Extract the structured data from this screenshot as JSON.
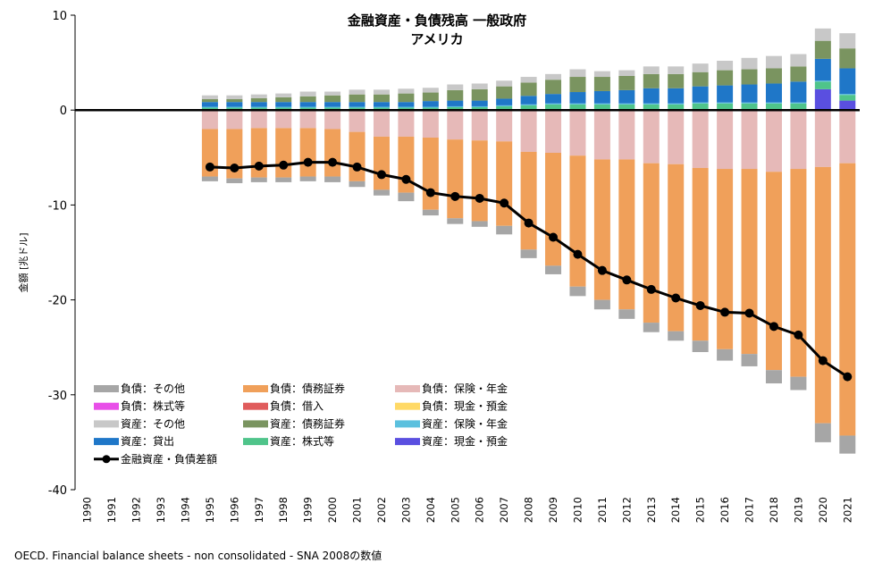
{
  "chart_data": {
    "type": "bar",
    "title": "金融資産・負債残高 一般政府",
    "subtitle": "アメリカ",
    "ylabel": "金額 [兆ドル]",
    "ylim": [
      -40,
      10
    ],
    "yticks": [
      10,
      0,
      -10,
      -20,
      -30,
      -40
    ],
    "source": "OECD. Financial balance sheets - non consolidated - SNA 2008の数値",
    "categories": [
      "1990",
      "1991",
      "1992",
      "1993",
      "1994",
      "1995",
      "1996",
      "1997",
      "1998",
      "1999",
      "2000",
      "2001",
      "2002",
      "2003",
      "2004",
      "2005",
      "2006",
      "2007",
      "2008",
      "2009",
      "2010",
      "2011",
      "2012",
      "2013",
      "2014",
      "2015",
      "2016",
      "2017",
      "2018",
      "2019",
      "2020",
      "2021"
    ],
    "colors": {
      "liab_other": "#a6a6a6",
      "liab_debt": "#f0a05a",
      "liab_ins": "#e6b9b8",
      "liab_equity": "#e84fe8",
      "liab_loans": "#e05c5c",
      "liab_cash": "#ffd966",
      "asset_other": "#c8c8c8",
      "asset_debt": "#7a9460",
      "asset_ins": "#5bc0de",
      "asset_loans": "#1f77c8",
      "asset_equity": "#4fc48a",
      "asset_cash": "#5a4fe0",
      "net": "#000000"
    },
    "legend": [
      {
        "key": "liab_other",
        "label": "負債：その他"
      },
      {
        "key": "liab_debt",
        "label": "負債：債務証券"
      },
      {
        "key": "liab_ins",
        "label": "負債：保険・年金"
      },
      {
        "key": "liab_equity",
        "label": "負債：株式等"
      },
      {
        "key": "liab_loans",
        "label": "負債：借入"
      },
      {
        "key": "liab_cash",
        "label": "負債：現金・預金"
      },
      {
        "key": "asset_other",
        "label": "資産：その他"
      },
      {
        "key": "asset_debt",
        "label": "資産：債務証券"
      },
      {
        "key": "asset_ins",
        "label": "資産：保険・年金"
      },
      {
        "key": "asset_loans",
        "label": "資産：貸出"
      },
      {
        "key": "asset_equity",
        "label": "資産：株式等"
      },
      {
        "key": "asset_cash",
        "label": "資産：現金・預金"
      },
      {
        "key": "net",
        "label": "金融資産・負債差額",
        "type": "line"
      }
    ],
    "asset_series": [
      {
        "key": "asset_cash",
        "values": [
          null,
          null,
          null,
          null,
          null,
          0.05,
          0.05,
          0.05,
          0.05,
          0.05,
          0.05,
          0.05,
          0.05,
          0.05,
          0.05,
          0.1,
          0.1,
          0.1,
          0.1,
          0.1,
          0.1,
          0.1,
          0.1,
          0.1,
          0.1,
          0.1,
          0.1,
          0.1,
          0.1,
          0.1,
          2.2,
          1.0
        ]
      },
      {
        "key": "asset_equity",
        "values": [
          null,
          null,
          null,
          null,
          null,
          0.2,
          0.2,
          0.2,
          0.2,
          0.2,
          0.2,
          0.2,
          0.2,
          0.2,
          0.2,
          0.2,
          0.2,
          0.3,
          0.4,
          0.5,
          0.5,
          0.5,
          0.5,
          0.5,
          0.5,
          0.6,
          0.6,
          0.6,
          0.6,
          0.6,
          0.8,
          0.6
        ]
      },
      {
        "key": "asset_ins",
        "values": [
          null,
          null,
          null,
          null,
          null,
          0.1,
          0.1,
          0.1,
          0.1,
          0.1,
          0.1,
          0.1,
          0.1,
          0.1,
          0.1,
          0.1,
          0.1,
          0.1,
          0.1,
          0.1,
          0.1,
          0.1,
          0.1,
          0.1,
          0.1,
          0.1,
          0.1,
          0.1,
          0.1,
          0.1,
          0.1,
          0.1
        ]
      },
      {
        "key": "asset_loans",
        "values": [
          null,
          null,
          null,
          null,
          null,
          0.5,
          0.5,
          0.5,
          0.5,
          0.5,
          0.5,
          0.5,
          0.5,
          0.5,
          0.6,
          0.6,
          0.6,
          0.7,
          0.9,
          1.0,
          1.2,
          1.3,
          1.4,
          1.6,
          1.6,
          1.7,
          1.8,
          1.9,
          2.0,
          2.2,
          2.3,
          2.7
        ]
      },
      {
        "key": "asset_debt",
        "values": [
          null,
          null,
          null,
          null,
          null,
          0.3,
          0.3,
          0.4,
          0.5,
          0.6,
          0.7,
          0.8,
          0.8,
          0.9,
          0.9,
          1.1,
          1.2,
          1.3,
          1.4,
          1.5,
          1.6,
          1.5,
          1.5,
          1.5,
          1.5,
          1.5,
          1.6,
          1.6,
          1.6,
          1.6,
          1.9,
          2.1
        ]
      },
      {
        "key": "asset_other",
        "values": [
          null,
          null,
          null,
          null,
          null,
          0.4,
          0.4,
          0.4,
          0.4,
          0.5,
          0.4,
          0.5,
          0.5,
          0.5,
          0.5,
          0.6,
          0.6,
          0.6,
          0.6,
          0.6,
          0.8,
          0.6,
          0.6,
          0.8,
          0.8,
          0.9,
          1.0,
          1.2,
          1.3,
          1.3,
          1.3,
          1.6
        ]
      }
    ],
    "liability_series": [
      {
        "key": "liab_cash",
        "values": [
          null,
          null,
          null,
          null,
          null,
          0.0,
          0.0,
          0.0,
          0.0,
          0.0,
          0.0,
          0.0,
          0.0,
          0.0,
          0.0,
          0.0,
          0.0,
          0.0,
          0.0,
          0.0,
          0.0,
          0.0,
          0.0,
          0.0,
          0.0,
          0.0,
          0.0,
          0.0,
          0.0,
          0.0,
          0.0,
          0.0
        ]
      },
      {
        "key": "liab_loans",
        "values": [
          null,
          null,
          null,
          null,
          null,
          0.0,
          0.0,
          0.0,
          0.0,
          0.0,
          0.0,
          0.0,
          0.0,
          0.0,
          0.0,
          0.0,
          0.0,
          0.0,
          0.0,
          0.0,
          0.0,
          0.0,
          0.0,
          0.0,
          0.0,
          0.0,
          0.0,
          0.0,
          0.0,
          0.0,
          0.0,
          0.0
        ]
      },
      {
        "key": "liab_equity",
        "values": [
          null,
          null,
          null,
          null,
          null,
          0.0,
          0.0,
          0.0,
          0.0,
          0.0,
          0.0,
          0.0,
          0.0,
          0.0,
          0.0,
          0.0,
          0.0,
          0.0,
          0.0,
          0.0,
          0.0,
          0.0,
          0.0,
          0.0,
          0.0,
          0.0,
          0.0,
          0.0,
          0.0,
          0.0,
          0.0,
          0.0
        ]
      },
      {
        "key": "liab_ins",
        "values": [
          null,
          null,
          null,
          null,
          null,
          2.0,
          2.0,
          1.9,
          1.9,
          1.9,
          2.0,
          2.3,
          2.8,
          2.8,
          2.9,
          3.1,
          3.2,
          3.3,
          4.4,
          4.5,
          4.8,
          5.2,
          5.2,
          5.6,
          5.7,
          6.1,
          6.2,
          6.2,
          6.5,
          6.2,
          6.0,
          5.6
        ]
      },
      {
        "key": "liab_debt",
        "values": [
          null,
          null,
          null,
          null,
          null,
          5.0,
          5.2,
          5.2,
          5.2,
          5.1,
          5.0,
          5.2,
          5.6,
          5.9,
          7.6,
          8.3,
          8.5,
          8.9,
          10.3,
          11.9,
          13.8,
          14.8,
          15.8,
          16.8,
          17.6,
          18.2,
          19.0,
          19.5,
          20.9,
          21.9,
          27.0,
          28.7
        ]
      },
      {
        "key": "liab_other",
        "values": [
          null,
          null,
          null,
          null,
          null,
          0.5,
          0.5,
          0.5,
          0.5,
          0.5,
          0.6,
          0.6,
          0.6,
          0.9,
          0.6,
          0.6,
          0.6,
          0.9,
          0.9,
          0.9,
          1.0,
          1.0,
          1.0,
          1.0,
          1.0,
          1.2,
          1.2,
          1.3,
          1.4,
          1.4,
          2.0,
          1.9
        ]
      }
    ],
    "net": [
      null,
      null,
      null,
      null,
      null,
      -6.0,
      -6.1,
      -5.9,
      -5.8,
      -5.5,
      -5.5,
      -6.0,
      -6.8,
      -7.3,
      -8.7,
      -9.1,
      -9.3,
      -9.8,
      -11.9,
      -13.4,
      -15.2,
      -16.9,
      -17.9,
      -18.9,
      -19.8,
      -20.6,
      -21.3,
      -21.4,
      -22.8,
      -23.7,
      -26.4,
      -28.1
    ]
  }
}
